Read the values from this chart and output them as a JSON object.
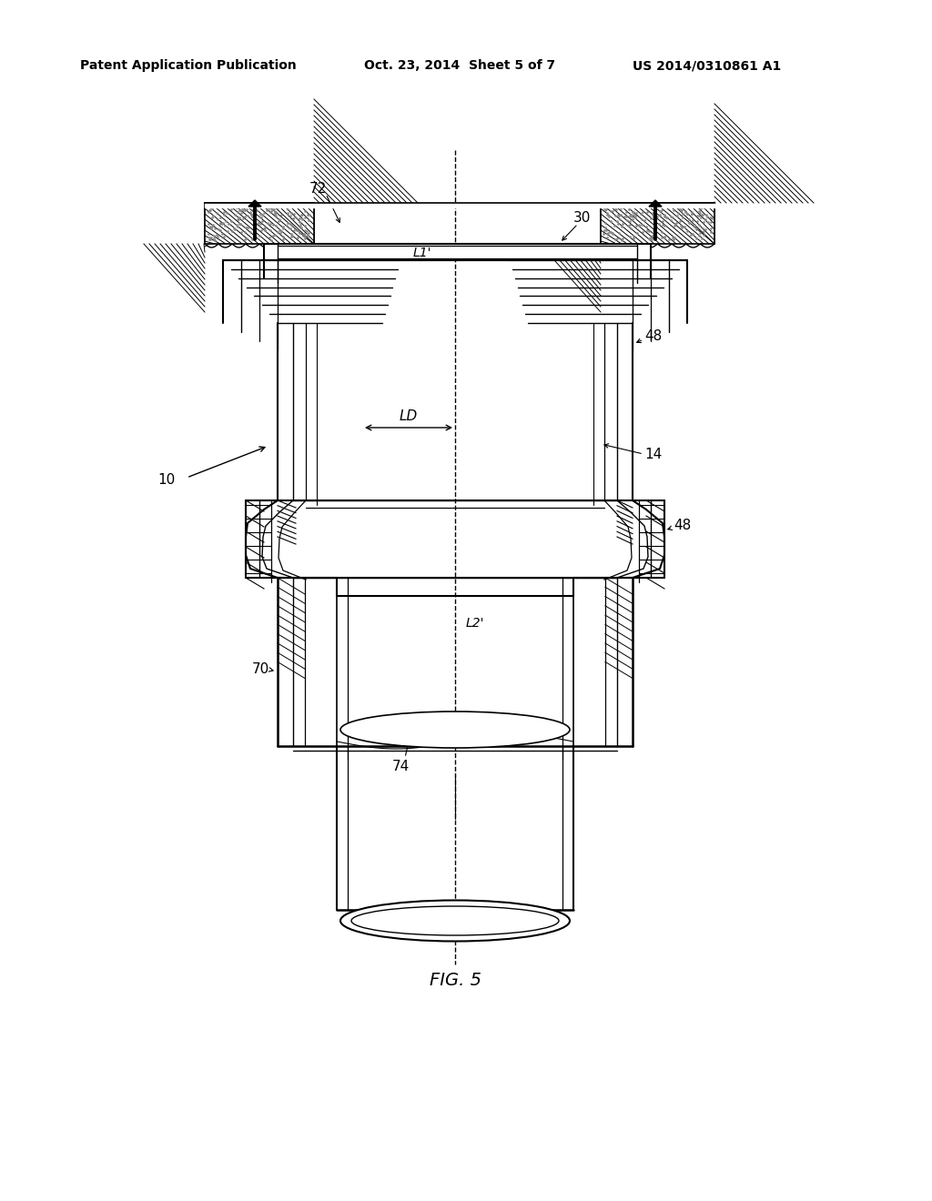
{
  "background_color": "#ffffff",
  "header_left": "Patent Application Publication",
  "header_center": "Oct. 23, 2014  Sheet 5 of 7",
  "header_right": "US 2014/0310861 A1",
  "figure_label": "FIG. 5",
  "line_color": "#000000"
}
